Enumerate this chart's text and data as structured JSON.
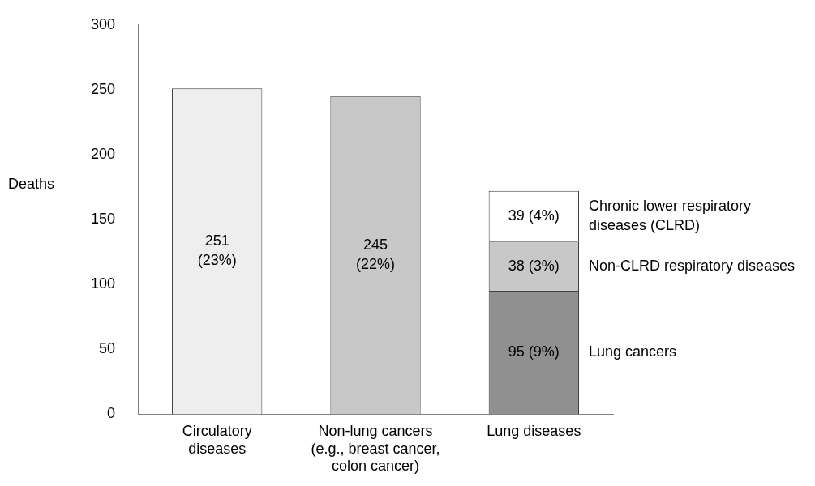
{
  "chart_data": {
    "type": "bar",
    "stacked": true,
    "ylabel": "Deaths",
    "categories": [
      "Circulatory\ndiseases",
      "Non-lung cancers\n(e.g., breast cancer,\ncolon cancer)",
      "Lung diseases"
    ],
    "ylim": [
      0,
      300
    ],
    "yticks": [
      0,
      50,
      100,
      150,
      200,
      250,
      300
    ],
    "series": [
      {
        "colors": [
          "#eeeeee",
          "#c8c8c8",
          "#909090"
        ],
        "values": [
          251,
          245,
          null
        ],
        "value_labels": [
          "251\n(23%)",
          "245\n(22%)",
          null
        ]
      },
      {
        "name": "Lung cancers",
        "color": "#909090",
        "values": [
          null,
          null,
          95
        ],
        "value_labels": [
          null,
          null,
          "95 (9%)"
        ]
      },
      {
        "name": "Non-CLRD respiratory diseases",
        "color": "#c8c8c8",
        "values": [
          null,
          null,
          38
        ],
        "value_labels": [
          null,
          null,
          "38 (3%)"
        ]
      },
      {
        "name": "Chronic lower respiratory diseases (CLRD)",
        "color": "#ffffff",
        "values": [
          null,
          null,
          39
        ],
        "value_labels": [
          null,
          null,
          "39 (4%)"
        ]
      }
    ]
  }
}
